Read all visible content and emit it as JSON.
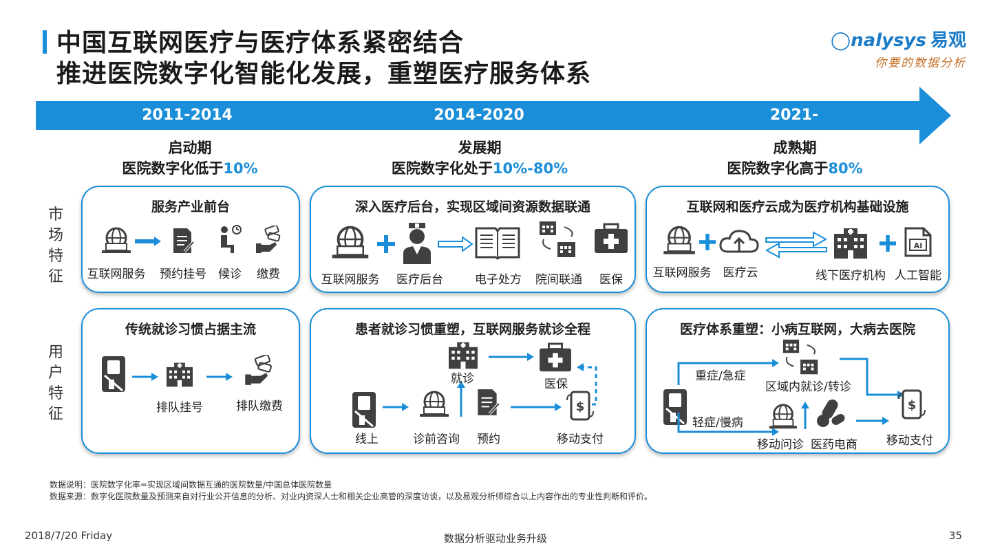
{
  "header": {
    "title_line1": "中国互联网医疗与医疗体系紧密结合",
    "title_line2": "推进医院数字化智能化发展，重塑医疗服务体系",
    "logo_main": "nalysys",
    "logo_cn": "易观",
    "logo_sub": "你要的数据分析"
  },
  "timeline": {
    "periods": [
      "2011-2014",
      "2014-2020",
      "2021-"
    ],
    "stages": [
      {
        "name": "启动期",
        "desc": "医院数字化低于",
        "pct": "10%"
      },
      {
        "name": "发展期",
        "desc": "医院数字化处于",
        "pct": "10%-80%"
      },
      {
        "name": "成熟期",
        "desc": "医院数字化高于",
        "pct": "80%"
      }
    ]
  },
  "row_labels": {
    "market": [
      "市",
      "场",
      "特",
      "征"
    ],
    "user": [
      "用",
      "户",
      "特",
      "征"
    ]
  },
  "market": {
    "c1": {
      "title": "服务产业前台",
      "items": [
        "互联网服务",
        "预约挂号",
        "候诊",
        "缴费"
      ]
    },
    "c2": {
      "title": "深入医疗后台，实现区域间资源数据联通",
      "items": [
        "互联网服务",
        "医疗后台",
        "电子处方",
        "院间联通",
        "医保"
      ]
    },
    "c3": {
      "title": "互联网和医疗云成为医疗机构基础设施",
      "items": [
        "互联网服务",
        "医疗云",
        "线下医疗机构",
        "人工智能"
      ]
    }
  },
  "user": {
    "c1": {
      "title": "传统就诊习惯占据主流",
      "items": [
        "排队挂号",
        "排队缴费"
      ]
    },
    "c2": {
      "title": "患者就诊习惯重塑，互联网服务就诊全程",
      "items": [
        "就诊",
        "医保",
        "线上",
        "诊前咨询",
        "预约",
        "移动支付"
      ]
    },
    "c3": {
      "title": "医疗体系重塑：小病互联网，大病去医院",
      "items": [
        "重症/急症",
        "区域内就诊/转诊",
        "轻症/慢病",
        "移动问诊",
        "医药电商",
        "移动支付"
      ]
    }
  },
  "notes": {
    "line1": "数据说明：医院数字化率=实现区域间数据互通的医院数量/中国总体医院数量",
    "line2": "数据来源：数字化医院数量及预测来自对行业公开信息的分析、对业内资深人士和相关企业高管的深度访谈，以及易观分析师综合以上内容作出的专业性判断和评价。"
  },
  "footer": {
    "date": "2018/7/20 Friday",
    "center": "数据分析驱动业务升级",
    "page": "35"
  },
  "colors": {
    "accent": "#1a8ed8",
    "icon": "#404040",
    "logo_sub": "#c5732b"
  }
}
